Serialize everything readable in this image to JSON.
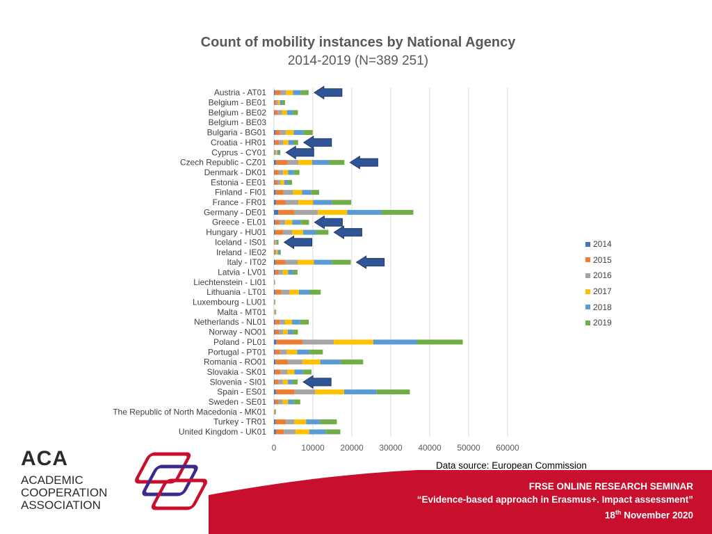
{
  "chart_data": {
    "type": "bar",
    "orientation": "horizontal",
    "stacked": true,
    "title": "Count of mobility instances by National Agency",
    "subtitle": "2014-2019 (N=389 251)",
    "categories": [
      "Austria - AT01",
      "Belgium - BE01",
      "Belgium - BE02",
      "Belgium - BE03",
      "Bulgaria - BG01",
      "Croatia - HR01",
      "Cyprus - CY01",
      "Czech Republic - CZ01",
      "Denmark - DK01",
      "Estonia - EE01",
      "Finland - FI01",
      "France - FR01",
      "Germany - DE01",
      "Greece - EL01",
      "Hungary - HU01",
      "Iceland - IS01",
      "Ireland - IE02",
      "Italy - IT02",
      "Latvia - LV01",
      "Liechtenstein - LI01",
      "Lithuania - LT01",
      "Luxembourg - LU01",
      "Malta - MT01",
      "Netherlands - NL01",
      "Norway - NO01",
      "Poland - PL01",
      "Portugal - PT01",
      "Romania - RO01",
      "Slovakia - SK01",
      "Slovenia - SI01",
      "Spain - ES01",
      "Sweden - SE01",
      "The Republic of North Macedonia - MK01",
      "Turkey - TR01",
      "United Kingdom - UK01"
    ],
    "series": [
      {
        "name": "2014",
        "color": "#4472C4",
        "values": [
          300,
          50,
          150,
          0,
          350,
          200,
          50,
          500,
          150,
          150,
          400,
          450,
          1100,
          300,
          300,
          20,
          50,
          350,
          250,
          0,
          300,
          10,
          30,
          250,
          250,
          600,
          250,
          400,
          250,
          200,
          500,
          250,
          10,
          350,
          450
        ]
      },
      {
        "name": "2015",
        "color": "#ED7D31",
        "values": [
          1300,
          500,
          800,
          0,
          1200,
          1100,
          200,
          3000,
          1000,
          800,
          2000,
          2500,
          4200,
          1100,
          2000,
          150,
          300,
          2500,
          900,
          30,
          1600,
          50,
          100,
          1200,
          1000,
          6800,
          1300,
          3200,
          1400,
          1000,
          4800,
          900,
          70,
          2700,
          2100
        ]
      },
      {
        "name": "2016",
        "color": "#A5A5A5",
        "values": [
          1500,
          500,
          1100,
          0,
          1500,
          1100,
          300,
          2800,
          1200,
          800,
          2500,
          3300,
          6000,
          1500,
          2400,
          200,
          300,
          3300,
          1100,
          50,
          2100,
          60,
          100,
          1400,
          1100,
          8000,
          1800,
          3700,
          1800,
          1100,
          5300,
          1100,
          80,
          2200,
          3000
        ]
      },
      {
        "name": "2017",
        "color": "#FFC000",
        "values": [
          1800,
          500,
          1300,
          0,
          2000,
          1300,
          300,
          3500,
          1300,
          900,
          2300,
          3800,
          7500,
          1800,
          2800,
          200,
          300,
          4100,
          1400,
          50,
          2400,
          60,
          100,
          1800,
          1200,
          10100,
          2600,
          4600,
          1800,
          1300,
          7400,
          1400,
          100,
          3000,
          3500
        ]
      },
      {
        "name": "2018",
        "color": "#5B9BD5",
        "values": [
          2000,
          600,
          1500,
          0,
          2500,
          1300,
          400,
          4400,
          1500,
          1000,
          2400,
          4800,
          8800,
          2200,
          3300,
          300,
          400,
          4600,
          1300,
          60,
          2800,
          60,
          120,
          2100,
          1300,
          11200,
          3200,
          5200,
          2200,
          1200,
          8300,
          1400,
          120,
          3600,
          4200
        ]
      },
      {
        "name": "2019",
        "color": "#70AD47",
        "values": [
          2000,
          700,
          1300,
          0,
          2400,
          1200,
          400,
          3900,
          1400,
          1000,
          2000,
          5000,
          8200,
          2100,
          3200,
          300,
          400,
          4900,
          1100,
          60,
          2800,
          50,
          130,
          2200,
          1300,
          11800,
          3400,
          5800,
          2200,
          1300,
          8600,
          1700,
          130,
          4300,
          3800
        ]
      }
    ],
    "xlim": [
      0,
      60000
    ],
    "xticks": [
      0,
      10000,
      20000,
      30000,
      40000,
      50000,
      60000
    ],
    "grid": true,
    "legend": "right",
    "highlighted": [
      "Austria - AT01",
      "Croatia - HR01",
      "Cyprus - CY01",
      "Czech Republic - CZ01",
      "Greece - EL01",
      "Hungary - HU01",
      "Iceland - IS01",
      "Italy - IT02",
      "Slovenia - SI01"
    ]
  },
  "footer": {
    "source": "Data source: European Commission",
    "seminar_title": "FRSE ONLINE RESEARCH SEMINAR",
    "seminar_subtitle": "“Evidence-based approach in Erasmus+. Impact assessment”",
    "date_day": "18",
    "date_suffix": "th",
    "date_rest": " November 2020"
  },
  "logo": {
    "acronym": "ACA",
    "line1": "ACADEMIC",
    "line2": "COOPERATION",
    "line3": "ASSOCIATION"
  },
  "colors": {
    "brand_red": "#C8102E",
    "brand_purple": "#3B2A8C",
    "arrow": "#2F5597"
  }
}
